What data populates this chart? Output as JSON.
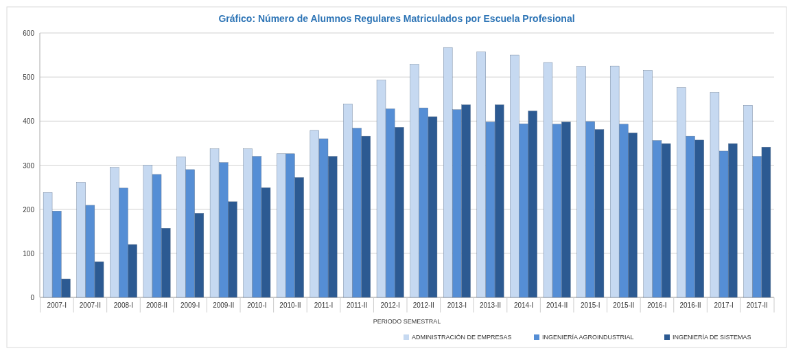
{
  "chart_data": {
    "type": "bar",
    "title": "Gráfico: Número de Alumnos Regulares Matriculados por Escuela Profesional",
    "xlabel": "PERIODO SEMESTRAL",
    "categories": [
      "2007-I",
      "2007-II",
      "2008-I",
      "2008-II",
      "2009-I",
      "2009-II",
      "2010-I",
      "2010-II",
      "2011-I",
      "2011-II",
      "2012-I",
      "2012-II",
      "2013-I",
      "2013-II",
      "2014-I",
      "2014-II",
      "2015-I",
      "2015-II",
      "2016-I",
      "2016-II",
      "2017-I",
      "2017-II"
    ],
    "series": [
      {
        "name": "ADMINISTRACIÓN DE EMPRESAS",
        "color": "#c6d9f1",
        "values": [
          238,
          261,
          295,
          300,
          319,
          337,
          337,
          326,
          379,
          439,
          493,
          529,
          567,
          557,
          550,
          533,
          524,
          525,
          515,
          476,
          465,
          436
        ]
      },
      {
        "name": "INGENIERÍA AGROINDUSTRIAL",
        "color": "#558ed5",
        "values": [
          196,
          209,
          248,
          279,
          290,
          306,
          320,
          326,
          360,
          384,
          428,
          430,
          426,
          398,
          394,
          393,
          399,
          393,
          356,
          366,
          332,
          320
        ]
      },
      {
        "name": "INGENIERÍA DE SISTEMAS",
        "color": "#2c5a92",
        "values": [
          42,
          81,
          120,
          157,
          191,
          217,
          249,
          272,
          320,
          366,
          386,
          410,
          437,
          437,
          423,
          398,
          381,
          373,
          349,
          357,
          349,
          341
        ]
      }
    ],
    "ylim": [
      0,
      600
    ],
    "yticks": [
      0,
      100,
      200,
      300,
      400,
      500,
      600
    ],
    "grid": "y",
    "legend": "bottom right"
  }
}
